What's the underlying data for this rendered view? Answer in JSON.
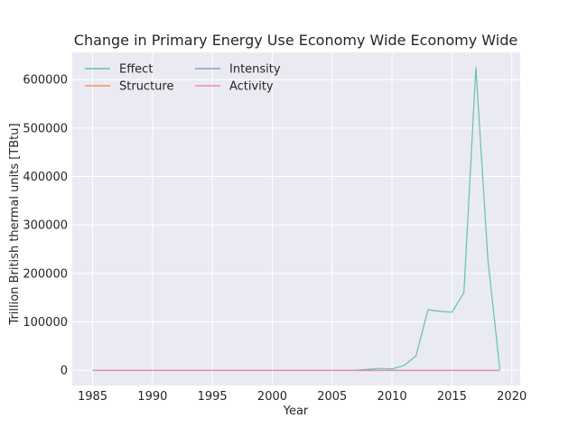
{
  "chart_data": {
    "type": "line",
    "title": "Change in Primary Energy Use Economy Wide Economy Wide",
    "xlabel": "Year",
    "ylabel": "Trillion British thermal units [TBtu]",
    "xlim": [
      1983.3,
      2020.7
    ],
    "ylim": [
      -31250,
      656300
    ],
    "x_ticks": [
      1985,
      1990,
      1995,
      2000,
      2005,
      2010,
      2015,
      2020
    ],
    "y_ticks": [
      0,
      100000,
      200000,
      300000,
      400000,
      500000,
      600000
    ],
    "grid": true,
    "legend_position": "top-left",
    "x": [
      1985,
      1986,
      1987,
      1988,
      1989,
      1990,
      1991,
      1992,
      1993,
      1994,
      1995,
      1996,
      1997,
      1998,
      1999,
      2000,
      2001,
      2002,
      2003,
      2004,
      2005,
      2006,
      2007,
      2008,
      2009,
      2010,
      2011,
      2012,
      2013,
      2014,
      2015,
      2016,
      2017,
      2018,
      2019
    ],
    "series": [
      {
        "name": "Effect",
        "color": "#66c2a5",
        "values": [
          0,
          0,
          0,
          0,
          0,
          0,
          0,
          0,
          0,
          0,
          0,
          0,
          0,
          0,
          0,
          0,
          0,
          0,
          0,
          0,
          0,
          0,
          500,
          2000,
          4000,
          3000,
          10000,
          30000,
          125000,
          122000,
          120000,
          160000,
          625000,
          230000,
          2000
        ]
      },
      {
        "name": "Structure",
        "color": "#fc8d62",
        "values": [
          0,
          0,
          0,
          0,
          0,
          0,
          0,
          0,
          0,
          0,
          0,
          0,
          0,
          0,
          0,
          0,
          0,
          0,
          0,
          0,
          0,
          0,
          0,
          0,
          0,
          0,
          0,
          0,
          0,
          0,
          0,
          0,
          0,
          0,
          0
        ]
      },
      {
        "name": "Intensity",
        "color": "#8da0cb",
        "values": [
          0,
          0,
          0,
          0,
          0,
          0,
          0,
          0,
          0,
          0,
          0,
          0,
          0,
          0,
          0,
          0,
          0,
          0,
          0,
          0,
          0,
          0,
          0,
          0,
          0,
          0,
          0,
          0,
          0,
          0,
          0,
          0,
          0,
          0,
          0
        ]
      },
      {
        "name": "Activity",
        "color": "#e78ac3",
        "values": [
          0,
          0,
          0,
          0,
          0,
          0,
          0,
          0,
          0,
          0,
          0,
          0,
          0,
          0,
          0,
          0,
          0,
          0,
          0,
          0,
          0,
          0,
          0,
          0,
          0,
          0,
          0,
          0,
          0,
          0,
          0,
          0,
          0,
          0,
          0
        ]
      }
    ]
  },
  "colors": {
    "plot_background": "#eaeaf2",
    "grid": "#ffffff",
    "text": "#262626"
  }
}
